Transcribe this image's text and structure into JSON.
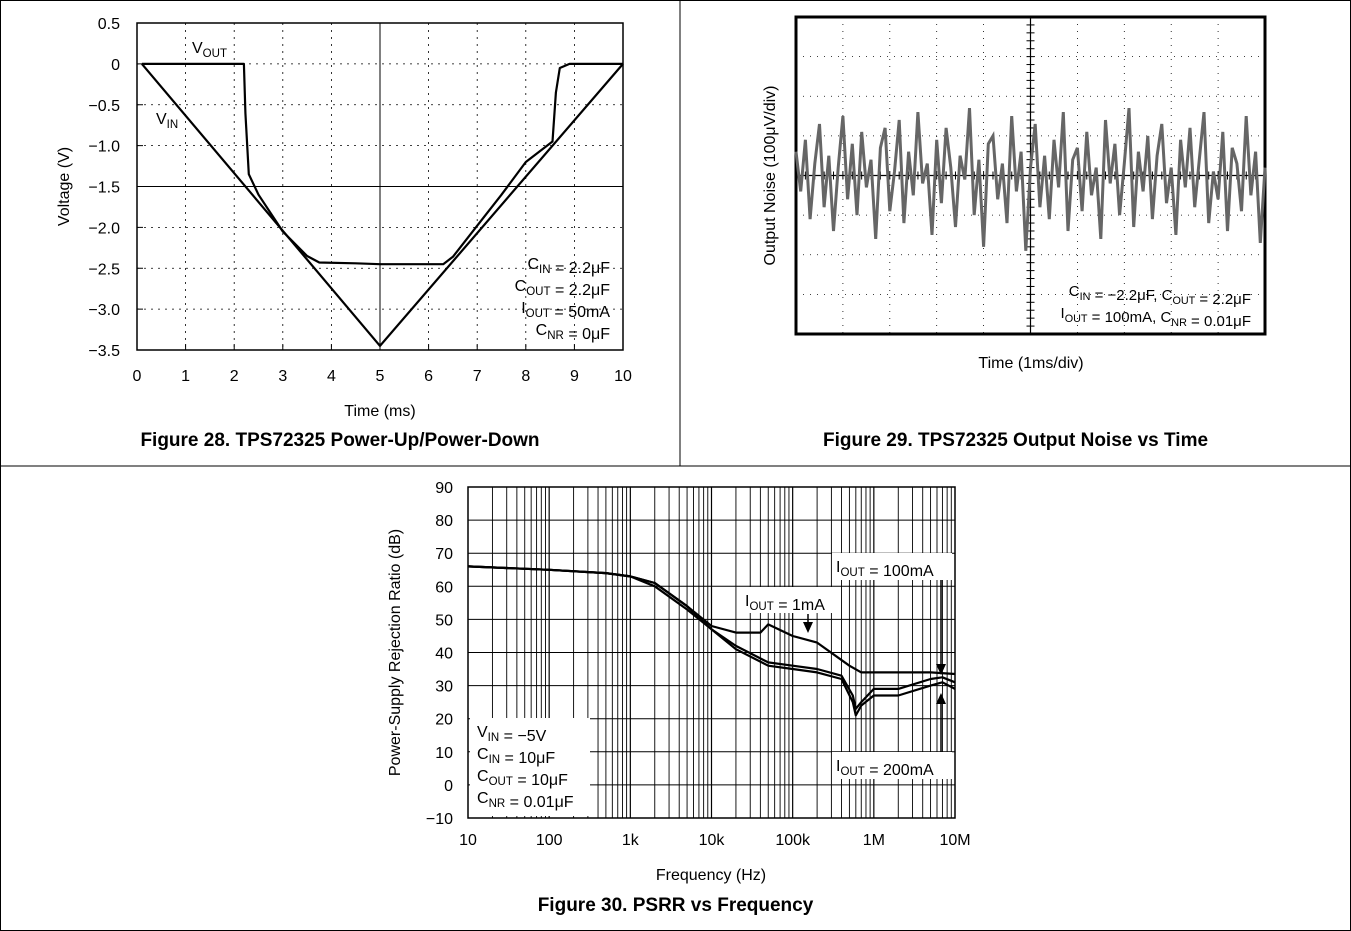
{
  "figures": [
    {
      "caption": "Figure 28. TPS72325 Power-Up/Power-Down"
    },
    {
      "caption": "Figure 29. TPS72325 Output Noise vs Time"
    },
    {
      "caption": "Figure 30. PSRR vs Frequency"
    }
  ],
  "chart_data": [
    {
      "type": "line",
      "title": "",
      "xlabel": "Time (ms)",
      "ylabel": "Voltage (V)",
      "xlim": [
        0,
        10
      ],
      "ylim": [
        -3.5,
        0.5
      ],
      "xticks": [
        "0",
        "1",
        "2",
        "3",
        "4",
        "5",
        "6",
        "7",
        "8",
        "9",
        "10"
      ],
      "yticks": [
        "0.5",
        "0",
        "−0.5",
        "−1.0",
        "−1.5",
        "−2.0",
        "−2.5",
        "−3.0",
        "−3.5"
      ],
      "grid": "dotted",
      "series": [
        {
          "name": "VIN",
          "sub": "IN",
          "x": [
            0.1,
            5.0,
            10.0
          ],
          "y": [
            0.0,
            -3.45,
            0.0
          ]
        },
        {
          "name": "VOUT",
          "sub": "OUT",
          "x": [
            0.1,
            1.0,
            2.2,
            2.23,
            2.3,
            2.5,
            3.0,
            3.5,
            3.75,
            4.5,
            5.0,
            5.5,
            6.3,
            6.5,
            7.0,
            7.5,
            8.0,
            8.55,
            8.62,
            8.7,
            8.9,
            9.5,
            10.0
          ],
          "y": [
            0.0,
            0.0,
            0.0,
            -0.6,
            -1.35,
            -1.6,
            -2.05,
            -2.35,
            -2.43,
            -2.44,
            -2.45,
            -2.45,
            -2.45,
            -2.36,
            -1.98,
            -1.6,
            -1.2,
            -0.95,
            -0.35,
            -0.05,
            0.0,
            0.0,
            0.0
          ]
        }
      ],
      "annotations": [
        {
          "text": "C",
          "sub": "IN",
          "after": " = 2.2μF"
        },
        {
          "text": "C",
          "sub": "OUT",
          "after": " = 2.2μF"
        },
        {
          "text": "I",
          "sub": "OUT",
          "after": " = 50mA"
        },
        {
          "text": "C",
          "sub": "NR",
          "after": " = 0μF"
        }
      ]
    },
    {
      "type": "line",
      "title": "",
      "xlabel": "Time (1ms/div)",
      "ylabel": "Output Noise (100μV/div)",
      "x_divisions": 10,
      "y_divisions": 8,
      "grid": "dotted",
      "series": [
        {
          "name": "Output Noise",
          "unit": "div",
          "x": [
            0.0,
            0.1,
            0.2,
            0.3,
            0.4,
            0.5,
            0.6,
            0.7,
            0.8,
            0.9,
            1.0,
            1.1,
            1.2,
            1.3,
            1.4,
            1.5,
            1.6,
            1.7,
            1.8,
            1.9,
            2.0,
            2.1,
            2.2,
            2.3,
            2.4,
            2.5,
            2.6,
            2.7,
            2.8,
            2.9,
            3.0,
            3.1,
            3.2,
            3.3,
            3.4,
            3.5,
            3.6,
            3.7,
            3.8,
            3.9,
            4.0,
            4.1,
            4.2,
            4.3,
            4.4,
            4.5,
            4.6,
            4.7,
            4.8,
            4.9,
            5.0,
            5.1,
            5.2,
            5.3,
            5.4,
            5.5,
            5.6,
            5.7,
            5.8,
            5.9,
            6.0,
            6.1,
            6.2,
            6.3,
            6.4,
            6.5,
            6.6,
            6.7,
            6.8,
            6.9,
            7.0,
            7.1,
            7.2,
            7.3,
            7.4,
            7.5,
            7.6,
            7.7,
            7.8,
            7.9,
            8.0,
            8.1,
            8.2,
            8.3,
            8.4,
            8.5,
            8.6,
            8.7,
            8.8,
            8.9,
            9.0,
            9.1,
            9.2,
            9.3,
            9.4,
            9.5,
            9.6,
            9.7,
            9.8,
            9.9,
            10.0
          ],
          "y": [
            0.6,
            -0.4,
            0.9,
            -1.1,
            0.3,
            1.3,
            -0.8,
            0.5,
            -1.4,
            0.2,
            1.5,
            -0.6,
            0.8,
            -1.0,
            1.1,
            -0.3,
            0.4,
            -1.6,
            0.7,
            1.2,
            -0.9,
            0.1,
            1.4,
            -1.2,
            0.6,
            -0.5,
            1.6,
            -0.2,
            0.3,
            -1.5,
            0.9,
            -0.7,
            1.2,
            0.2,
            -1.3,
            0.5,
            -0.1,
            1.7,
            -1.0,
            0.4,
            -1.8,
            0.8,
            1.0,
            -0.6,
            0.3,
            -1.2,
            1.5,
            -0.4,
            0.6,
            -1.9,
            0.2,
            1.3,
            -0.8,
            0.5,
            -1.1,
            0.9,
            -0.3,
            1.6,
            -1.4,
            0.4,
            0.7,
            -0.9,
            1.1,
            -0.5,
            0.2,
            -1.6,
            1.4,
            -0.2,
            0.8,
            -1.0,
            0.3,
            1.7,
            -1.3,
            0.6,
            -0.4,
            1.0,
            -1.1,
            0.5,
            1.3,
            -0.7,
            0.2,
            -1.5,
            0.9,
            -0.3,
            1.2,
            -0.8,
            0.4,
            1.6,
            -1.2,
            0.1,
            -0.6,
            1.1,
            -1.4,
            0.7,
            0.3,
            -0.9,
            1.5,
            -0.5,
            0.6,
            -1.7,
            0.2
          ]
        }
      ],
      "annotations": [
        {
          "text": "C",
          "sub": "IN",
          "after": " = −2.2μF, C",
          "sub2": "OUT",
          "after2": " = 2.2μF"
        },
        {
          "text": "I",
          "sub": "OUT",
          "after": " = 100mA, C",
          "sub2": "NR",
          "after2": " = 0.01μF"
        }
      ]
    },
    {
      "type": "line",
      "title": "",
      "xlabel": "Frequency (Hz)",
      "ylabel": "Power-Supply Rejection Ratio (dB)",
      "x_scale": "log",
      "xlim": [
        10,
        10000000
      ],
      "ylim": [
        -10,
        90
      ],
      "xticks": [
        "10",
        "100",
        "1k",
        "10k",
        "100k",
        "1M",
        "10M"
      ],
      "yticks": [
        "90",
        "80",
        "70",
        "60",
        "50",
        "40",
        "30",
        "20",
        "10",
        "0",
        "−10"
      ],
      "grid": "solid",
      "series": [
        {
          "name": "IOUT = 1mA",
          "sub": "OUT",
          "x": [
            10,
            100,
            500,
            1000,
            2000,
            5000,
            10000,
            20000,
            40000,
            50000,
            100000,
            200000,
            500000,
            700000,
            1000000,
            2000000,
            5000000,
            10000000
          ],
          "y": [
            66,
            65,
            64,
            63,
            61,
            54,
            48,
            46,
            46,
            48.5,
            45,
            43,
            36,
            34,
            34,
            34,
            34,
            33.5
          ]
        },
        {
          "name": "IOUT = 100mA",
          "sub": "OUT",
          "x": [
            10,
            100,
            500,
            1000,
            2000,
            5000,
            10000,
            20000,
            50000,
            100000,
            200000,
            400000,
            550000,
            600000,
            700000,
            1000000,
            2000000,
            5000000,
            7000000,
            10000000
          ],
          "y": [
            66,
            65,
            64,
            63,
            61,
            54,
            47,
            42,
            37,
            36,
            35,
            33,
            27,
            23,
            25,
            29,
            29,
            32,
            32.5,
            31
          ]
        },
        {
          "name": "IOUT = 200mA",
          "sub": "OUT",
          "x": [
            10,
            100,
            500,
            1000,
            2000,
            5000,
            10000,
            20000,
            50000,
            100000,
            200000,
            400000,
            550000,
            600000,
            700000,
            1000000,
            2000000,
            5000000,
            7000000,
            10000000
          ],
          "y": [
            66,
            65,
            64,
            63,
            60,
            53,
            47,
            41,
            36,
            35,
            34,
            32,
            25,
            21,
            24,
            27,
            27,
            30,
            31,
            29
          ]
        }
      ],
      "annotations": [
        {
          "text": "I",
          "sub": "OUT",
          "after": " = 100mA"
        },
        {
          "text": "I",
          "sub": "OUT",
          "after": " = 1mA"
        },
        {
          "text": "I",
          "sub": "OUT",
          "after": " = 200mA"
        },
        {
          "text": "V",
          "sub": "IN",
          "after": " = −5V"
        },
        {
          "text": "C",
          "sub": "IN",
          "after": " = 10μF"
        },
        {
          "text": "C",
          "sub": "OUT",
          "after": " = 10μF"
        },
        {
          "text": "C",
          "sub": "NR",
          "after": " = 0.01μF"
        }
      ]
    }
  ]
}
